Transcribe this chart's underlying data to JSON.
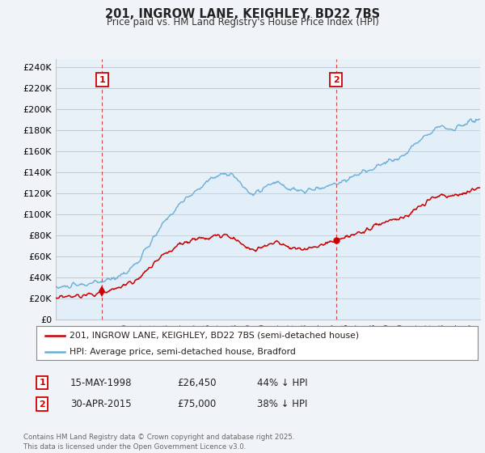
{
  "title": "201, INGROW LANE, KEIGHLEY, BD22 7BS",
  "subtitle": "Price paid vs. HM Land Registry's House Price Index (HPI)",
  "ylabel_ticks": [
    "£0",
    "£20K",
    "£40K",
    "£60K",
    "£80K",
    "£100K",
    "£120K",
    "£140K",
    "£160K",
    "£180K",
    "£200K",
    "£220K",
    "£240K"
  ],
  "ytick_vals": [
    0,
    20000,
    40000,
    60000,
    80000,
    100000,
    120000,
    140000,
    160000,
    180000,
    200000,
    220000,
    240000
  ],
  "ylim": [
    0,
    248000
  ],
  "sale1": {
    "date_num": 1998.37,
    "price": 26450,
    "label": "1",
    "date_str": "15-MAY-1998",
    "pct": "44% ↓ HPI"
  },
  "sale2": {
    "date_num": 2015.33,
    "price": 75000,
    "label": "2",
    "date_str": "30-APR-2015",
    "pct": "38% ↓ HPI"
  },
  "hpi_color": "#6baed6",
  "hpi_fill_color": "#d6eaf8",
  "sale_color": "#cc0000",
  "vline_color": "#cc0000",
  "bg_color": "#f0f4f8",
  "plot_bg_color": "#e8f0f8",
  "grid_color": "#c0c8d0",
  "legend_label_sale": "201, INGROW LANE, KEIGHLEY, BD22 7BS (semi-detached house)",
  "legend_label_hpi": "HPI: Average price, semi-detached house, Bradford",
  "footnote": "Contains HM Land Registry data © Crown copyright and database right 2025.\nThis data is licensed under the Open Government Licence v3.0.",
  "xlim_start": 1995.0,
  "xlim_end": 2025.8
}
